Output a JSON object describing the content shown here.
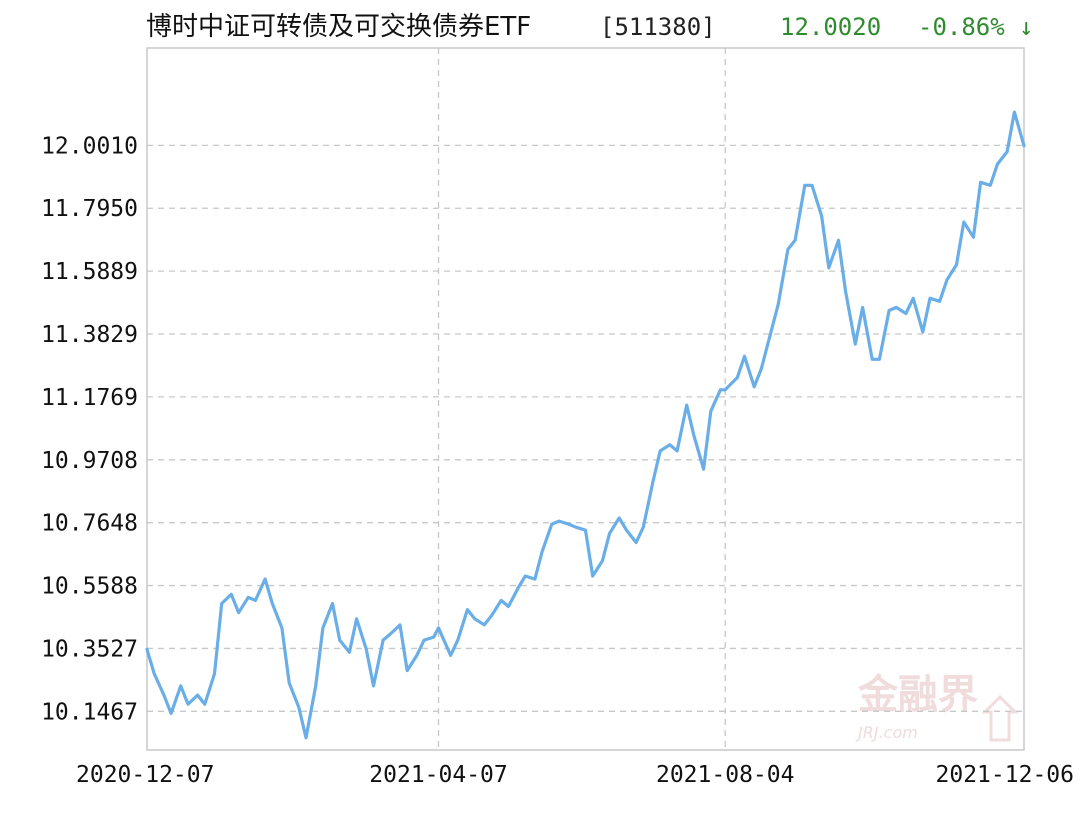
{
  "header": {
    "fund_name": "博时中证可转债及可交换债券ETF",
    "fund_code": "[511380]",
    "price": "12.0020",
    "change": "-0.86% ↓",
    "change_color": "#2e8b2e"
  },
  "watermark": {
    "text": "金融界",
    "sub": "JRJ.com"
  },
  "chart_data": {
    "type": "line",
    "title": "",
    "xlabel": "",
    "ylabel": "",
    "x_tick_labels": [
      "2020-12-07",
      "2021-04-07",
      "2021-08-04",
      "2021-12-06"
    ],
    "y_tick_labels": [
      "12.0010",
      "11.7950",
      "11.5889",
      "11.3829",
      "11.1769",
      "10.9708",
      "10.7648",
      "10.5588",
      "10.3527",
      "10.1467"
    ],
    "ylim": [
      10.02,
      12.32
    ],
    "x_range": [
      "2020-12-07",
      "2021-12-06"
    ],
    "line_color": "#6aaee8",
    "grid": true,
    "series": [
      {
        "values": [
          [
            "2020-12-07",
            10.35
          ],
          [
            "2020-12-10",
            10.27
          ],
          [
            "2020-12-14",
            10.2
          ],
          [
            "2020-12-17",
            10.14
          ],
          [
            "2020-12-21",
            10.23
          ],
          [
            "2020-12-24",
            10.17
          ],
          [
            "2020-12-28",
            10.2
          ],
          [
            "2020-12-31",
            10.17
          ],
          [
            "2021-01-04",
            10.27
          ],
          [
            "2021-01-07",
            10.5
          ],
          [
            "2021-01-11",
            10.53
          ],
          [
            "2021-01-14",
            10.47
          ],
          [
            "2021-01-18",
            10.52
          ],
          [
            "2021-01-21",
            10.51
          ],
          [
            "2021-01-25",
            10.58
          ],
          [
            "2021-01-28",
            10.5
          ],
          [
            "2021-02-01",
            10.42
          ],
          [
            "2021-02-04",
            10.24
          ],
          [
            "2021-02-08",
            10.16
          ],
          [
            "2021-02-11",
            10.06
          ],
          [
            "2021-02-15",
            10.23
          ],
          [
            "2021-02-18",
            10.42
          ],
          [
            "2021-02-22",
            10.5
          ],
          [
            "2021-02-25",
            10.38
          ],
          [
            "2021-03-01",
            10.34
          ],
          [
            "2021-03-04",
            10.45
          ],
          [
            "2021-03-08",
            10.35
          ],
          [
            "2021-03-11",
            10.23
          ],
          [
            "2021-03-15",
            10.38
          ],
          [
            "2021-03-18",
            10.4
          ],
          [
            "2021-03-22",
            10.43
          ],
          [
            "2021-03-25",
            10.28
          ],
          [
            "2021-03-29",
            10.33
          ],
          [
            "2021-04-01",
            10.38
          ],
          [
            "2021-04-05",
            10.39
          ],
          [
            "2021-04-07",
            10.42
          ],
          [
            "2021-04-12",
            10.33
          ],
          [
            "2021-04-15",
            10.38
          ],
          [
            "2021-04-19",
            10.48
          ],
          [
            "2021-04-22",
            10.45
          ],
          [
            "2021-04-26",
            10.43
          ],
          [
            "2021-04-29",
            10.46
          ],
          [
            "2021-05-03",
            10.51
          ],
          [
            "2021-05-06",
            10.49
          ],
          [
            "2021-05-10",
            10.55
          ],
          [
            "2021-05-13",
            10.59
          ],
          [
            "2021-05-17",
            10.58
          ],
          [
            "2021-05-20",
            10.67
          ],
          [
            "2021-05-24",
            10.76
          ],
          [
            "2021-05-27",
            10.77
          ],
          [
            "2021-05-31",
            10.76
          ],
          [
            "2021-06-03",
            10.75
          ],
          [
            "2021-06-07",
            10.74
          ],
          [
            "2021-06-10",
            10.59
          ],
          [
            "2021-06-14",
            10.64
          ],
          [
            "2021-06-17",
            10.73
          ],
          [
            "2021-06-21",
            10.78
          ],
          [
            "2021-06-24",
            10.74
          ],
          [
            "2021-06-28",
            10.7
          ],
          [
            "2021-07-01",
            10.75
          ],
          [
            "2021-07-05",
            10.9
          ],
          [
            "2021-07-08",
            11.0
          ],
          [
            "2021-07-12",
            11.02
          ],
          [
            "2021-07-15",
            11.0
          ],
          [
            "2021-07-19",
            11.15
          ],
          [
            "2021-07-22",
            11.05
          ],
          [
            "2021-07-26",
            10.94
          ],
          [
            "2021-07-29",
            11.13
          ],
          [
            "2021-08-02",
            11.2
          ],
          [
            "2021-08-04",
            11.2
          ],
          [
            "2021-08-09",
            11.24
          ],
          [
            "2021-08-12",
            11.31
          ],
          [
            "2021-08-16",
            11.21
          ],
          [
            "2021-08-19",
            11.27
          ],
          [
            "2021-08-23",
            11.39
          ],
          [
            "2021-08-26",
            11.48
          ],
          [
            "2021-08-30",
            11.66
          ],
          [
            "2021-09-02",
            11.69
          ],
          [
            "2021-09-06",
            11.87
          ],
          [
            "2021-09-09",
            11.87
          ],
          [
            "2021-09-13",
            11.77
          ],
          [
            "2021-09-16",
            11.6
          ],
          [
            "2021-09-20",
            11.69
          ],
          [
            "2021-09-23",
            11.52
          ],
          [
            "2021-09-27",
            11.35
          ],
          [
            "2021-09-30",
            11.47
          ],
          [
            "2021-10-04",
            11.3
          ],
          [
            "2021-10-07",
            11.3
          ],
          [
            "2021-10-11",
            11.46
          ],
          [
            "2021-10-14",
            11.47
          ],
          [
            "2021-10-18",
            11.45
          ],
          [
            "2021-10-21",
            11.5
          ],
          [
            "2021-10-25",
            11.39
          ],
          [
            "2021-10-28",
            11.5
          ],
          [
            "2021-11-01",
            11.49
          ],
          [
            "2021-11-04",
            11.56
          ],
          [
            "2021-11-08",
            11.61
          ],
          [
            "2021-11-11",
            11.75
          ],
          [
            "2021-11-15",
            11.7
          ],
          [
            "2021-11-18",
            11.88
          ],
          [
            "2021-11-22",
            11.87
          ],
          [
            "2021-11-25",
            11.94
          ],
          [
            "2021-11-29",
            11.98
          ],
          [
            "2021-12-02",
            12.11
          ],
          [
            "2021-12-06",
            12.0
          ]
        ]
      }
    ]
  }
}
